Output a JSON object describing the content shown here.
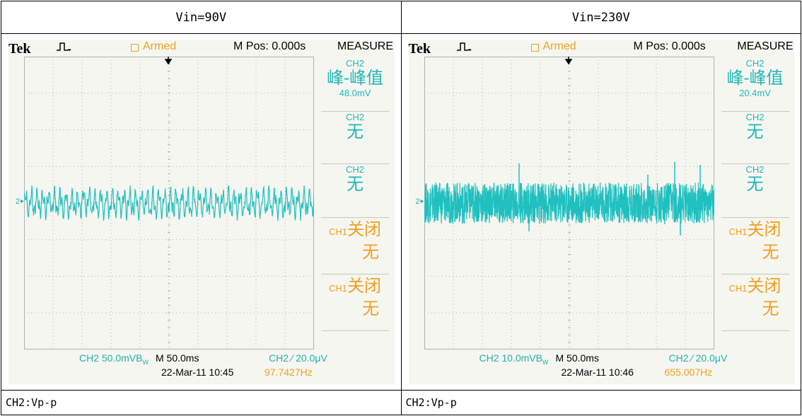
{
  "table": {
    "headers": [
      "Vin=90V",
      "Vin=230V"
    ],
    "footers": [
      "CH2:Vp-p",
      "CH2:Vp-p"
    ]
  },
  "colors": {
    "trace": "#20c0c0",
    "menu_text": "#20b8b8",
    "armed": "#f0a020",
    "screen_bg": "#f6f6f0",
    "grid": "#b0b0b0"
  },
  "scopes": [
    {
      "brand": "Tek",
      "trigger_icon": "pulse-trigger-icon",
      "status": "Armed",
      "m_pos": "M Pos: 0.000s",
      "measure_title": "MEASURE",
      "channel_marker": "2",
      "menu": [
        {
          "ch": "CH2",
          "label": "峰-峰值",
          "value": "48.0mV",
          "style": "teal"
        },
        {
          "ch": "CH2",
          "label": "无",
          "value": "",
          "style": "teal"
        },
        {
          "ch": "CH2",
          "label": "无",
          "value": "",
          "style": "teal"
        },
        {
          "ch": "CH1",
          "label": "关闭",
          "value": "无",
          "style": "orange"
        },
        {
          "ch": "CH1",
          "label": "关闭",
          "value": "无",
          "style": "orange"
        }
      ],
      "bottom": {
        "ch_scale": "CH2  50.0mVB",
        "bw_suffix": "W",
        "time_scale": "M 50.0ms",
        "trig_level": "CH2 ⁄ 20.0μV",
        "datetime": "22-Mar-11 10:45",
        "frequency": "97.7427Hz"
      },
      "chart_data": {
        "type": "line",
        "signal": "ripple",
        "trace_level_div": 0.0,
        "vpp_mV": 48.0,
        "volts_per_div_mV": 50.0,
        "time_per_div_ms": 50.0,
        "frequency_hz": 97.7427,
        "grid": true,
        "divisions": {
          "x": 10,
          "y": 8
        }
      }
    },
    {
      "brand": "Tek",
      "trigger_icon": "pulse-trigger-icon",
      "status": "Armed",
      "m_pos": "M Pos: 0.000s",
      "measure_title": "MEASURE",
      "channel_marker": "2",
      "menu": [
        {
          "ch": "CH2",
          "label": "峰-峰值",
          "value": "20.4mV",
          "style": "teal"
        },
        {
          "ch": "CH2",
          "label": "无",
          "value": "",
          "style": "teal"
        },
        {
          "ch": "CH2",
          "label": "无",
          "value": "",
          "style": "teal"
        },
        {
          "ch": "CH1",
          "label": "关闭",
          "value": "无",
          "style": "orange"
        },
        {
          "ch": "CH1",
          "label": "关闭",
          "value": "无",
          "style": "orange"
        }
      ],
      "bottom": {
        "ch_scale": "CH2  10.0mVB",
        "bw_suffix": "W",
        "time_scale": "M 50.0ms",
        "trig_level": "CH2 ⁄ 20.0μV",
        "datetime": "22-Mar-11 10:46",
        "frequency": "655.007Hz"
      },
      "chart_data": {
        "type": "line",
        "signal": "noise",
        "trace_level_div": 0.0,
        "vpp_mV": 20.4,
        "volts_per_div_mV": 10.0,
        "time_per_div_ms": 50.0,
        "frequency_hz": 655.007,
        "grid": true,
        "divisions": {
          "x": 10,
          "y": 8
        }
      }
    }
  ]
}
